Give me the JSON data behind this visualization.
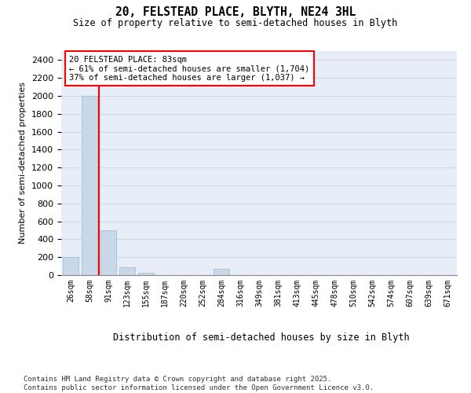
{
  "title": "20, FELSTEAD PLACE, BLYTH, NE24 3HL",
  "subtitle": "Size of property relative to semi-detached houses in Blyth",
  "xlabel": "Distribution of semi-detached houses by size in Blyth",
  "ylabel": "Number of semi-detached properties",
  "bar_color": "#c8d8e8",
  "bar_edge_color": "#a0b8cc",
  "bin_labels": [
    "26sqm",
    "58sqm",
    "91sqm",
    "123sqm",
    "155sqm",
    "187sqm",
    "220sqm",
    "252sqm",
    "284sqm",
    "316sqm",
    "349sqm",
    "381sqm",
    "413sqm",
    "445sqm",
    "478sqm",
    "510sqm",
    "542sqm",
    "574sqm",
    "607sqm",
    "639sqm",
    "671sqm"
  ],
  "bar_values": [
    200,
    2000,
    500,
    90,
    30,
    0,
    0,
    0,
    70,
    0,
    0,
    0,
    0,
    0,
    0,
    0,
    0,
    0,
    0,
    0,
    0
  ],
  "red_line_x": 1.5,
  "annotation_text": "20 FELSTEAD PLACE: 83sqm\n← 61% of semi-detached houses are smaller (1,704)\n37% of semi-detached houses are larger (1,037) →",
  "annotation_box_color": "white",
  "annotation_box_edge": "red",
  "ylim": [
    0,
    2500
  ],
  "yticks": [
    0,
    200,
    400,
    600,
    800,
    1000,
    1200,
    1400,
    1600,
    1800,
    2000,
    2200,
    2400
  ],
  "grid_color": "#d0d8e8",
  "bg_color": "#e8eef8",
  "footnote": "Contains HM Land Registry data © Crown copyright and database right 2025.\nContains public sector information licensed under the Open Government Licence v3.0."
}
